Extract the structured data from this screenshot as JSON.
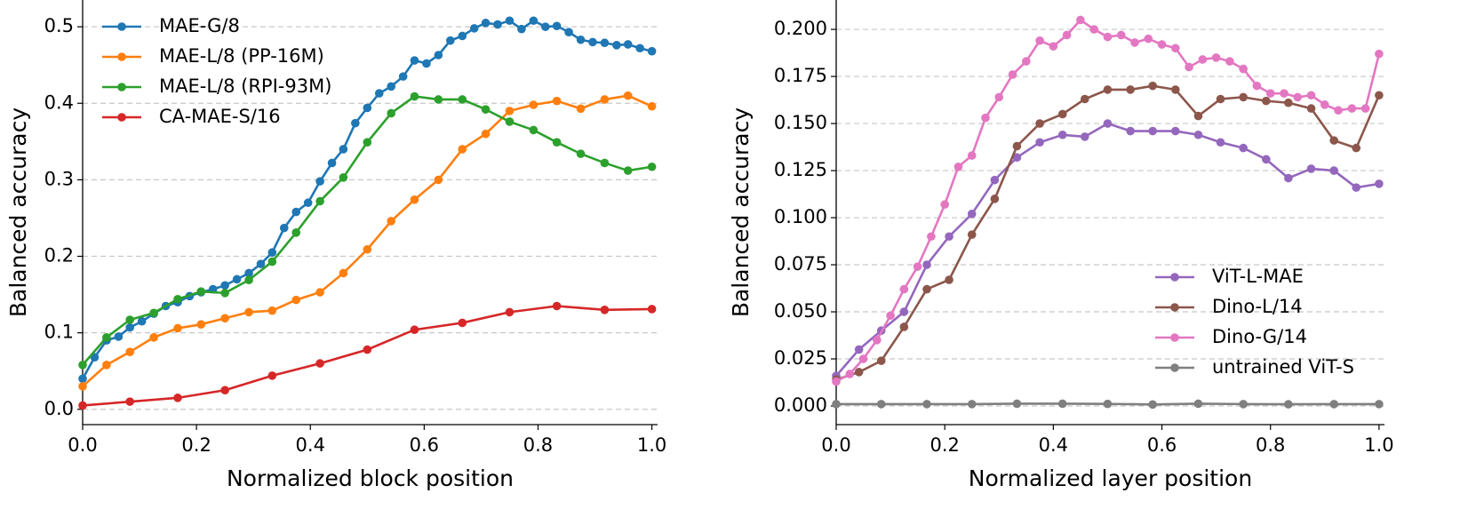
{
  "chart_data": [
    {
      "type": "line",
      "xlabel": "Normalized block position",
      "ylabel": "Balanced accuracy",
      "xlim": [
        0,
        1.01
      ],
      "ylim": [
        -0.02,
        0.535
      ],
      "xticks": [
        {
          "value": 0,
          "label": "0.0"
        },
        0.2,
        0.4,
        0.6,
        0.8,
        {
          "value": 1,
          "label": "1.0"
        }
      ],
      "yticks": [
        {
          "value": 0,
          "label": "0.0"
        },
        0.1,
        0.2,
        0.3,
        0.4,
        0.5
      ],
      "grid": true,
      "legend": "upper-left",
      "series": [
        {
          "name": "MAE-G/8",
          "color": "#1f77b4",
          "x": [
            0,
            0.021,
            0.042,
            0.063,
            0.083,
            0.104,
            0.125,
            0.146,
            0.167,
            0.188,
            0.208,
            0.229,
            0.25,
            0.271,
            0.292,
            0.313,
            0.333,
            0.354,
            0.375,
            0.396,
            0.417,
            0.438,
            0.458,
            0.479,
            0.5,
            0.521,
            0.542,
            0.563,
            0.583,
            0.604,
            0.625,
            0.646,
            0.667,
            0.688,
            0.708,
            0.729,
            0.75,
            0.771,
            0.792,
            0.813,
            0.833,
            0.854,
            0.875,
            0.896,
            0.917,
            0.938,
            0.958,
            0.979,
            1.0
          ],
          "values": [
            0.04,
            0.068,
            0.09,
            0.095,
            0.107,
            0.115,
            0.125,
            0.135,
            0.14,
            0.148,
            0.153,
            0.157,
            0.162,
            0.17,
            0.178,
            0.19,
            0.205,
            0.237,
            0.258,
            0.27,
            0.298,
            0.322,
            0.34,
            0.374,
            0.394,
            0.413,
            0.422,
            0.435,
            0.456,
            0.452,
            0.463,
            0.482,
            0.488,
            0.498,
            0.505,
            0.503,
            0.508,
            0.497,
            0.508,
            0.5,
            0.501,
            0.493,
            0.483,
            0.48,
            0.479,
            0.476,
            0.477,
            0.472,
            0.468
          ]
        },
        {
          "name": "MAE-L/8 (PP-16M)",
          "color": "#ff7f0e",
          "x": [
            0,
            0.042,
            0.083,
            0.125,
            0.167,
            0.208,
            0.25,
            0.292,
            0.333,
            0.375,
            0.417,
            0.458,
            0.5,
            0.542,
            0.583,
            0.625,
            0.667,
            0.708,
            0.75,
            0.792,
            0.833,
            0.875,
            0.917,
            0.958,
            1.0
          ],
          "values": [
            0.03,
            0.058,
            0.075,
            0.094,
            0.106,
            0.111,
            0.119,
            0.127,
            0.129,
            0.143,
            0.153,
            0.178,
            0.209,
            0.246,
            0.274,
            0.3,
            0.34,
            0.36,
            0.39,
            0.398,
            0.403,
            0.393,
            0.405,
            0.41,
            0.396
          ]
        },
        {
          "name": "MAE-L/8 (RPI-93M)",
          "color": "#2ca02c",
          "x": [
            0,
            0.042,
            0.083,
            0.125,
            0.167,
            0.208,
            0.25,
            0.292,
            0.333,
            0.375,
            0.417,
            0.458,
            0.5,
            0.542,
            0.583,
            0.625,
            0.667,
            0.708,
            0.75,
            0.792,
            0.833,
            0.875,
            0.917,
            0.958,
            1.0
          ],
          "values": [
            0.058,
            0.094,
            0.117,
            0.126,
            0.144,
            0.154,
            0.152,
            0.169,
            0.193,
            0.231,
            0.272,
            0.303,
            0.349,
            0.387,
            0.409,
            0.405,
            0.405,
            0.392,
            0.376,
            0.365,
            0.349,
            0.334,
            0.322,
            0.312,
            0.317
          ]
        },
        {
          "name": "CA-MAE-S/16",
          "color": "#d62728",
          "x": [
            0,
            0.083,
            0.167,
            0.25,
            0.333,
            0.417,
            0.5,
            0.583,
            0.667,
            0.75,
            0.833,
            0.917,
            1.0
          ],
          "values": [
            0.005,
            0.01,
            0.015,
            0.025,
            0.044,
            0.06,
            0.078,
            0.104,
            0.113,
            0.127,
            0.135,
            0.13,
            0.131
          ]
        }
      ]
    },
    {
      "type": "line",
      "xlabel": "Normalized layer position",
      "ylabel": "Balanced accuracy",
      "xlim": [
        0,
        1.01
      ],
      "ylim": [
        -0.0099,
        0.2156
      ],
      "xticks": [
        {
          "value": 0,
          "label": "0.0"
        },
        0.2,
        0.4,
        0.6,
        0.8,
        {
          "value": 1,
          "label": "1.0"
        }
      ],
      "yticks": [
        {
          "value": 0,
          "label": "0.000"
        },
        0.025,
        {
          "value": 0.05,
          "label": "0.050"
        },
        0.075,
        {
          "value": 0.1,
          "label": "0.100"
        },
        0.125,
        {
          "value": 0.15,
          "label": "0.150"
        },
        0.175,
        {
          "value": 0.2,
          "label": "0.200"
        }
      ],
      "grid": true,
      "legend": "lower-right",
      "series": [
        {
          "name": "ViT-L-MAE",
          "color": "#9467bd",
          "x": [
            0,
            0.042,
            0.083,
            0.125,
            0.167,
            0.208,
            0.25,
            0.292,
            0.333,
            0.375,
            0.417,
            0.458,
            0.5,
            0.542,
            0.583,
            0.625,
            0.667,
            0.708,
            0.75,
            0.792,
            0.833,
            0.875,
            0.917,
            0.958,
            1.0
          ],
          "values": [
            0.016,
            0.03,
            0.04,
            0.05,
            0.075,
            0.09,
            0.102,
            0.12,
            0.132,
            0.14,
            0.144,
            0.143,
            0.15,
            0.146,
            0.146,
            0.146,
            0.144,
            0.14,
            0.137,
            0.131,
            0.121,
            0.126,
            0.125,
            0.116,
            0.118
          ]
        },
        {
          "name": "Dino-L/14",
          "color": "#8c564b",
          "x": [
            0,
            0.042,
            0.083,
            0.125,
            0.167,
            0.208,
            0.25,
            0.292,
            0.333,
            0.375,
            0.417,
            0.458,
            0.5,
            0.542,
            0.583,
            0.625,
            0.667,
            0.708,
            0.75,
            0.792,
            0.833,
            0.875,
            0.917,
            0.958,
            1.0
          ],
          "values": [
            0.014,
            0.018,
            0.024,
            0.042,
            0.062,
            0.067,
            0.091,
            0.11,
            0.138,
            0.15,
            0.155,
            0.163,
            0.168,
            0.168,
            0.17,
            0.168,
            0.154,
            0.163,
            0.164,
            0.162,
            0.161,
            0.158,
            0.141,
            0.137,
            0.165
          ]
        },
        {
          "name": "Dino-G/14",
          "color": "#e377c2",
          "x": [
            0,
            0.025,
            0.05,
            0.075,
            0.1,
            0.125,
            0.15,
            0.175,
            0.2,
            0.225,
            0.25,
            0.275,
            0.3,
            0.325,
            0.35,
            0.375,
            0.4,
            0.425,
            0.45,
            0.475,
            0.5,
            0.525,
            0.55,
            0.575,
            0.6,
            0.625,
            0.65,
            0.675,
            0.7,
            0.725,
            0.75,
            0.775,
            0.8,
            0.825,
            0.85,
            0.875,
            0.9,
            0.925,
            0.95,
            0.975,
            1.0
          ],
          "values": [
            0.013,
            0.017,
            0.025,
            0.035,
            0.048,
            0.062,
            0.074,
            0.09,
            0.107,
            0.127,
            0.133,
            0.153,
            0.164,
            0.176,
            0.183,
            0.194,
            0.191,
            0.197,
            0.205,
            0.2,
            0.196,
            0.197,
            0.193,
            0.195,
            0.192,
            0.19,
            0.18,
            0.184,
            0.185,
            0.183,
            0.179,
            0.17,
            0.166,
            0.166,
            0.164,
            0.165,
            0.16,
            0.157,
            0.158,
            0.158,
            0.187
          ]
        },
        {
          "name": "untrained ViT-S",
          "color": "#7f7f7f",
          "x": [
            0,
            0.083,
            0.167,
            0.25,
            0.333,
            0.417,
            0.5,
            0.583,
            0.667,
            0.75,
            0.833,
            0.917,
            1.0
          ],
          "values": [
            0.001,
            0.001,
            0.001,
            0.001,
            0.0012,
            0.0012,
            0.0011,
            0.0008,
            0.0012,
            0.001,
            0.0009,
            0.001,
            0.001
          ]
        }
      ]
    }
  ]
}
